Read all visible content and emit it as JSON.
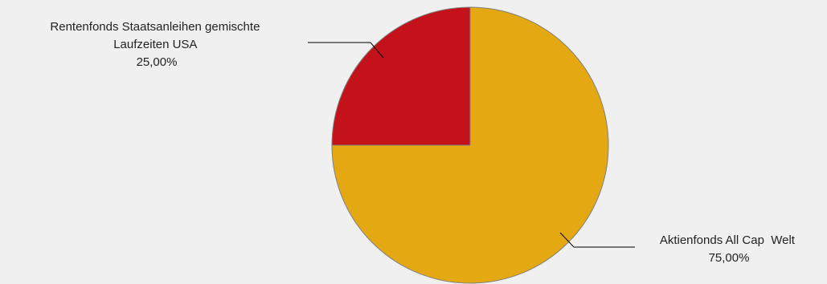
{
  "chart_data": {
    "type": "pie",
    "categories": [
      "Aktienfonds All Cap  Welt",
      "Rentenfonds Staatsanleihen gemischte Laufzeiten USA"
    ],
    "values": [
      75.0,
      25.0
    ],
    "value_labels": [
      "75,00%",
      "25,00%"
    ],
    "label_lines": [
      [
        "Aktienfonds All Cap  Welt",
        "75,00%"
      ],
      [
        "Rentenfonds Staatsanleihen gemischte",
        "Laufzeiten USA",
        "25,00%"
      ]
    ],
    "colors": [
      "#e4a812",
      "#c4121b"
    ],
    "start_angle_deg": 0,
    "direction": "clockwise",
    "legend": "none",
    "background": "#f0f0f0"
  }
}
